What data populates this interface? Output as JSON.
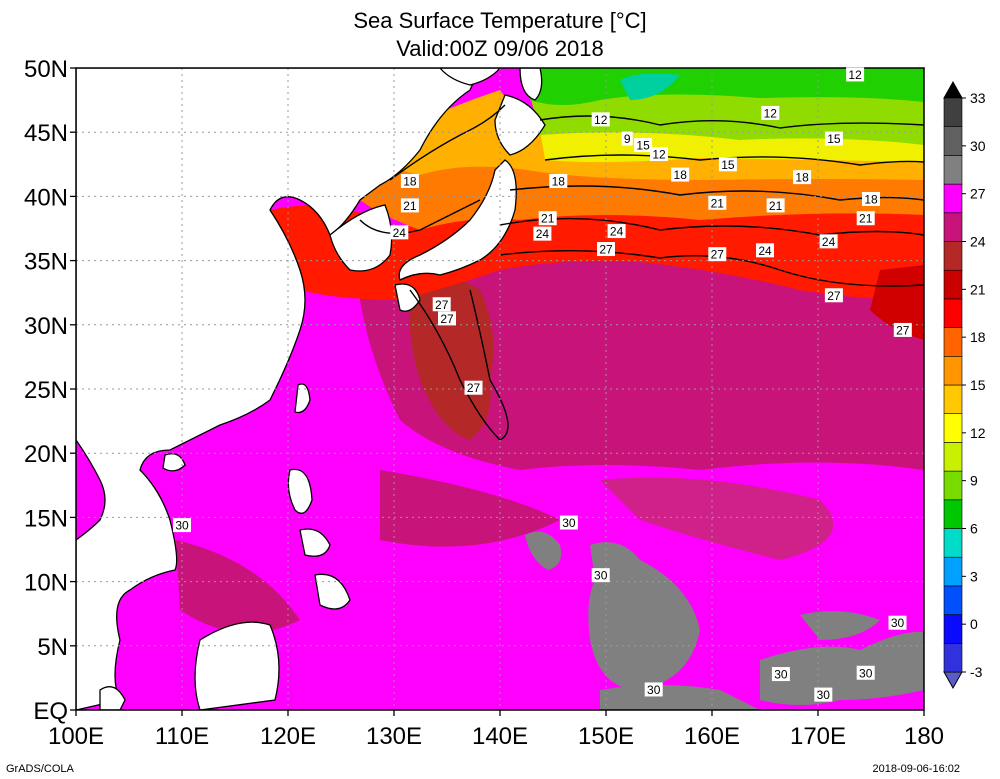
{
  "title": "Sea Surface Temperature [°C]",
  "subtitle": "Valid:00Z 09/06 2018",
  "footer_left": "GrADS/COLA",
  "footer_right": "2018-09-06-16:02",
  "map": {
    "lon_range": [
      100,
      180
    ],
    "lat_range": [
      0,
      50
    ],
    "lon_ticks": [
      "100E",
      "110E",
      "120E",
      "130E",
      "140E",
      "150E",
      "160E",
      "170E",
      "180"
    ],
    "lat_ticks": [
      "EQ",
      "5N",
      "10N",
      "15N",
      "20N",
      "25N",
      "30N",
      "35N",
      "40N",
      "45N",
      "50N"
    ],
    "grid": "dotted",
    "land_color": "#ffffff"
  },
  "colorbar": {
    "labels": [
      "-3",
      "0",
      "3",
      "6",
      "9",
      "12",
      "15",
      "18",
      "21",
      "24",
      "27",
      "30",
      "33"
    ],
    "colors": [
      "#5c5cc8",
      "#3232dc",
      "#0a0aff",
      "#0050ff",
      "#00a0ff",
      "#00dcc8",
      "#00c800",
      "#78dc00",
      "#c8f000",
      "#ffff00",
      "#ffc800",
      "#ff9600",
      "#ff6400",
      "#ff0000",
      "#c80000",
      "#b42828",
      "#c8147a",
      "#ff00ff",
      "#808080",
      "#606060",
      "#404040",
      "#000000"
    ]
  },
  "contour_labels": [
    {
      "text": "12",
      "lon": 173.5,
      "lat": 49.5
    },
    {
      "text": "12",
      "lon": 165.5,
      "lat": 46.5
    },
    {
      "text": "12",
      "lon": 149.5,
      "lat": 46.0
    },
    {
      "text": "9",
      "lon": 152.0,
      "lat": 44.5
    },
    {
      "text": "15",
      "lon": 153.5,
      "lat": 44.0
    },
    {
      "text": "12",
      "lon": 155.0,
      "lat": 43.3
    },
    {
      "text": "15",
      "lon": 171.5,
      "lat": 44.5
    },
    {
      "text": "15",
      "lon": 161.5,
      "lat": 42.5
    },
    {
      "text": "18",
      "lon": 157.0,
      "lat": 41.7
    },
    {
      "text": "18",
      "lon": 168.5,
      "lat": 41.5
    },
    {
      "text": "18",
      "lon": 175.0,
      "lat": 39.8
    },
    {
      "text": "18",
      "lon": 131.5,
      "lat": 41.2
    },
    {
      "text": "18",
      "lon": 145.5,
      "lat": 41.2
    },
    {
      "text": "21",
      "lon": 131.5,
      "lat": 39.3
    },
    {
      "text": "21",
      "lon": 160.5,
      "lat": 39.5
    },
    {
      "text": "21",
      "lon": 166.0,
      "lat": 39.3
    },
    {
      "text": "21",
      "lon": 174.5,
      "lat": 38.3
    },
    {
      "text": "21",
      "lon": 144.5,
      "lat": 38.3
    },
    {
      "text": "24",
      "lon": 130.5,
      "lat": 37.2
    },
    {
      "text": "24",
      "lon": 144.0,
      "lat": 37.1
    },
    {
      "text": "24",
      "lon": 151.0,
      "lat": 37.3
    },
    {
      "text": "24",
      "lon": 165.0,
      "lat": 35.8
    },
    {
      "text": "24",
      "lon": 171.0,
      "lat": 36.5
    },
    {
      "text": "27",
      "lon": 150.0,
      "lat": 35.9
    },
    {
      "text": "27",
      "lon": 160.5,
      "lat": 35.5
    },
    {
      "text": "27",
      "lon": 134.5,
      "lat": 31.6
    },
    {
      "text": "27",
      "lon": 135.0,
      "lat": 30.5
    },
    {
      "text": "27",
      "lon": 171.5,
      "lat": 32.3
    },
    {
      "text": "27",
      "lon": 178.0,
      "lat": 29.6
    },
    {
      "text": "27",
      "lon": 137.5,
      "lat": 25.1
    },
    {
      "text": "30",
      "lon": 110.0,
      "lat": 14.4
    },
    {
      "text": "30",
      "lon": 146.5,
      "lat": 14.6
    },
    {
      "text": "30",
      "lon": 149.5,
      "lat": 10.5
    },
    {
      "text": "30",
      "lon": 177.5,
      "lat": 6.8
    },
    {
      "text": "30",
      "lon": 166.5,
      "lat": 2.8
    },
    {
      "text": "30",
      "lon": 174.5,
      "lat": 2.9
    },
    {
      "text": "30",
      "lon": 170.5,
      "lat": 1.2
    },
    {
      "text": "30",
      "lon": 154.5,
      "lat": 1.6
    }
  ]
}
